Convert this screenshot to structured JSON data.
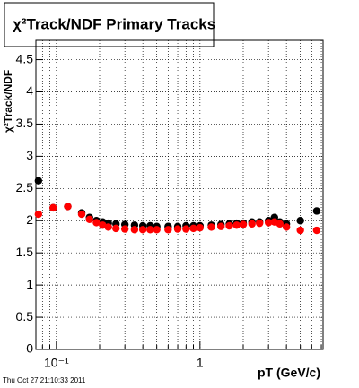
{
  "chart_data": {
    "type": "scatter",
    "title": "χ²Track/NDF  Primary Tracks",
    "y_label": "χ²Track/NDF",
    "x_label": "pT (GeV/c)",
    "timestamp": "Thu Oct 27 21:10:33 2011",
    "xlog": true,
    "grid": true,
    "xlim": [
      0.072,
      7.2
    ],
    "ylim": [
      0,
      4.8
    ],
    "xticks": [
      {
        "value": 0.1,
        "label": "10⁻¹"
      },
      1
    ],
    "xminorticks": [
      0.08,
      0.09,
      0.2,
      0.3,
      0.4,
      0.5,
      0.6,
      0.7,
      0.8,
      0.9,
      2,
      3,
      4,
      5,
      6,
      7
    ],
    "yticks": [
      0,
      0.5,
      1,
      1.5,
      2,
      2.5,
      3,
      3.5,
      4,
      4.5
    ],
    "x": [
      0.075,
      0.095,
      0.12,
      0.15,
      0.17,
      0.19,
      0.21,
      0.23,
      0.26,
      0.3,
      0.35,
      0.4,
      0.45,
      0.5,
      0.6,
      0.7,
      0.8,
      0.9,
      1.0,
      1.2,
      1.4,
      1.6,
      1.8,
      2.0,
      2.3,
      2.6,
      3.0,
      3.3,
      3.6,
      4.0,
      5.0,
      6.5
    ],
    "series": [
      {
        "color": "#000000",
        "values": [
          2.62,
          2.2,
          2.22,
          2.12,
          2.05,
          2.0,
          1.98,
          1.96,
          1.95,
          1.94,
          1.93,
          1.92,
          1.92,
          1.91,
          1.91,
          1.91,
          1.92,
          1.92,
          1.92,
          1.93,
          1.94,
          1.95,
          1.96,
          1.96,
          1.98,
          1.98,
          2.0,
          2.05,
          1.98,
          1.95,
          2.0,
          2.15
        ]
      },
      {
        "color": "#ff0000",
        "values": [
          2.1,
          2.2,
          2.22,
          2.1,
          2.02,
          1.97,
          1.93,
          1.9,
          1.88,
          1.87,
          1.86,
          1.86,
          1.86,
          1.86,
          1.86,
          1.87,
          1.87,
          1.88,
          1.89,
          1.9,
          1.91,
          1.92,
          1.93,
          1.94,
          1.95,
          1.96,
          1.97,
          1.98,
          1.95,
          1.9,
          1.85,
          1.85
        ]
      }
    ]
  }
}
